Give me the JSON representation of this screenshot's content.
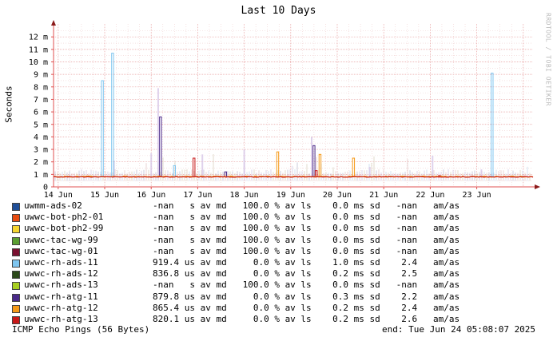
{
  "chart_data": {
    "type": "line",
    "title": "Last 10 Days",
    "ylabel": "Seconds",
    "watermark": "RRDTOOL / TOBI OETIKER",
    "ylim": [
      0,
      13
    ],
    "yticks": [
      "0",
      "1 m",
      "2 m",
      "3 m",
      "4 m",
      "5 m",
      "6 m",
      "7 m",
      "8 m",
      "9 m",
      "10 m",
      "11 m",
      "12 m"
    ],
    "xticks": [
      "14 Jun",
      "15 Jun",
      "16 Jun",
      "17 Jun",
      "18 Jun",
      "19 Jun",
      "20 Jun",
      "21 Jun",
      "22 Jun",
      "23 Jun"
    ],
    "grid": true,
    "baseline_ms": 0.82,
    "spikes": [
      {
        "series": "uwwc-rh-ads-11",
        "day": 14.95,
        "value_ms": 8.5
      },
      {
        "series": "uwwc-rh-ads-11",
        "day": 15.17,
        "value_ms": 10.7
      },
      {
        "series": "uwwc-rh-ads-11",
        "day": 16.5,
        "value_ms": 1.7
      },
      {
        "series": "uwwc-rh-ads-11",
        "day": 23.33,
        "value_ms": 9.1
      },
      {
        "series": "uwwc-rh-atg-11",
        "day": 16.2,
        "value_ms": 5.6
      },
      {
        "series": "uwwc-rh-atg-11",
        "day": 17.6,
        "value_ms": 1.2
      },
      {
        "series": "uwwc-rh-atg-11",
        "day": 19.5,
        "value_ms": 3.3
      },
      {
        "series": "uwwc-rh-atg-12",
        "day": 18.72,
        "value_ms": 2.8
      },
      {
        "series": "uwwc-rh-atg-12",
        "day": 19.63,
        "value_ms": 2.6
      },
      {
        "series": "uwwc-rh-atg-12",
        "day": 20.35,
        "value_ms": 2.3
      },
      {
        "series": "uwwc-rh-atg-13",
        "day": 16.92,
        "value_ms": 2.3
      },
      {
        "series": "uwwc-rh-atg-13",
        "day": 19.55,
        "value_ms": 1.3
      },
      {
        "series": "uwwc-rh-atg-13",
        "day": 22.2,
        "value_ms": 0.9
      }
    ],
    "series": [
      {
        "name": "uwmm-ads-02",
        "color": "#1f4e98",
        "stats": "-nan   s av md   100.0 % av ls    0.0 ms sd   -nan   am/as"
      },
      {
        "name": "uwwc-bot-ph2-01",
        "color": "#e84b10",
        "stats": "-nan   s av md   100.0 % av ls    0.0 ms sd   -nan   am/as"
      },
      {
        "name": "uwwc-bot-ph2-99",
        "color": "#f5d530",
        "stats": "-nan   s av md   100.0 % av ls    0.0 ms sd   -nan   am/as"
      },
      {
        "name": "uwwc-tac-wg-99",
        "color": "#5a9e32",
        "stats": "-nan   s av md   100.0 % av ls    0.0 ms sd   -nan   am/as"
      },
      {
        "name": "uwwc-tac-wg-01",
        "color": "#7a1030",
        "stats": "-nan   s av md   100.0 % av ls    0.0 ms sd   -nan   am/as"
      },
      {
        "name": "uwwc-rh-ads-11",
        "color": "#7fc6f0",
        "stats": "919.4 us av md     0.0 % av ls    1.0 ms sd    2.4   am/as"
      },
      {
        "name": "uwwc-rh-ads-12",
        "color": "#2c4a1a",
        "stats": "836.8 us av md     0.0 % av ls    0.2 ms sd    2.5   am/as"
      },
      {
        "name": "uwwc-rh-ads-13",
        "color": "#a8d020",
        "stats": "-nan   s av md   100.0 % av ls    0.0 ms sd   -nan   am/as"
      },
      {
        "name": "uwwc-rh-atg-11",
        "color": "#4a2a8a",
        "stats": "879.8 us av md     0.0 % av ls    0.3 ms sd    2.2   am/as"
      },
      {
        "name": "uwwc-rh-atg-12",
        "color": "#f59a18",
        "stats": "865.4 us av md     0.0 % av ls    0.2 ms sd    2.4   am/as"
      },
      {
        "name": "uwwc-rh-atg-13",
        "color": "#c81818",
        "stats": "820.1 us av md     0.0 % av ls    0.2 ms sd    2.6   am/as"
      }
    ]
  },
  "footer": {
    "left": "ICMP Echo Pings (56 Bytes)",
    "right": "end: Tue Jun 24 05:08:07 2025"
  }
}
